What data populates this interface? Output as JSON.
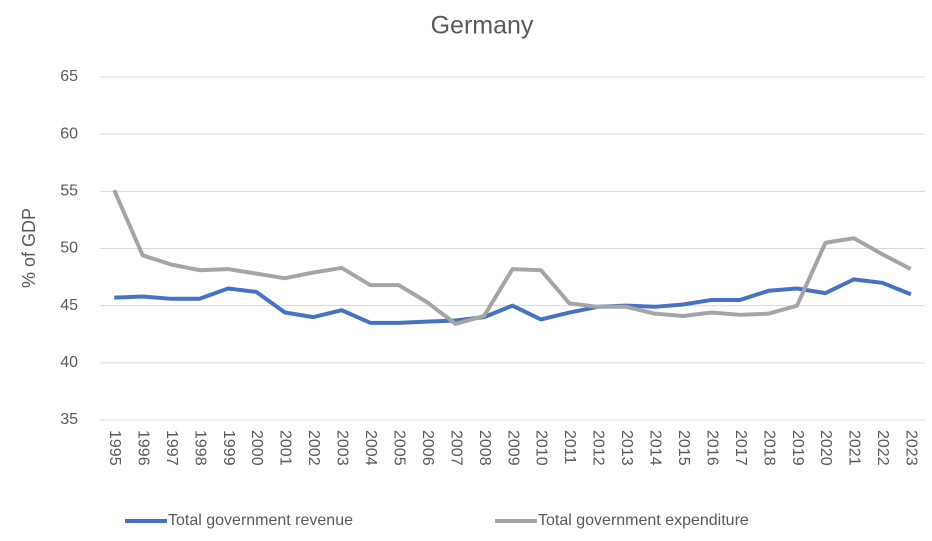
{
  "chart_data": {
    "type": "line",
    "title": "Germany",
    "y_label": "% of GDP",
    "categories": [
      "1995",
      "1996",
      "1997",
      "1998",
      "1999",
      "2000",
      "2001",
      "2002",
      "2003",
      "2004",
      "2005",
      "2006",
      "2007",
      "2008",
      "2009",
      "2010",
      "2011",
      "2012",
      "2013",
      "2014",
      "2015",
      "2016",
      "2017",
      "2018",
      "2019",
      "2020",
      "2021",
      "2022",
      "2023"
    ],
    "series": [
      {
        "name": "Total government revenue",
        "color": "#4472c4",
        "values": [
          45.7,
          45.8,
          45.6,
          45.6,
          46.5,
          46.2,
          44.4,
          44.0,
          44.6,
          43.5,
          43.5,
          43.6,
          43.7,
          44.0,
          45.0,
          43.8,
          44.4,
          44.9,
          45.0,
          44.9,
          45.1,
          45.5,
          45.5,
          46.3,
          46.5,
          46.1,
          47.3,
          47.0,
          46.0
        ]
      },
      {
        "name": "Total government expenditure",
        "color": "#a5a5a5",
        "values": [
          55.1,
          49.4,
          48.6,
          48.1,
          48.2,
          47.8,
          47.4,
          47.9,
          48.3,
          46.8,
          46.8,
          45.3,
          43.4,
          44.1,
          48.2,
          48.1,
          45.2,
          44.9,
          44.9,
          44.3,
          44.1,
          44.4,
          44.2,
          44.3,
          45.0,
          50.5,
          50.9,
          49.5,
          48.2
        ]
      }
    ],
    "ylim": [
      35,
      65
    ],
    "yticks": [
      35,
      40,
      45,
      50,
      55,
      60,
      65
    ],
    "grid": true,
    "legend": "bottom"
  }
}
